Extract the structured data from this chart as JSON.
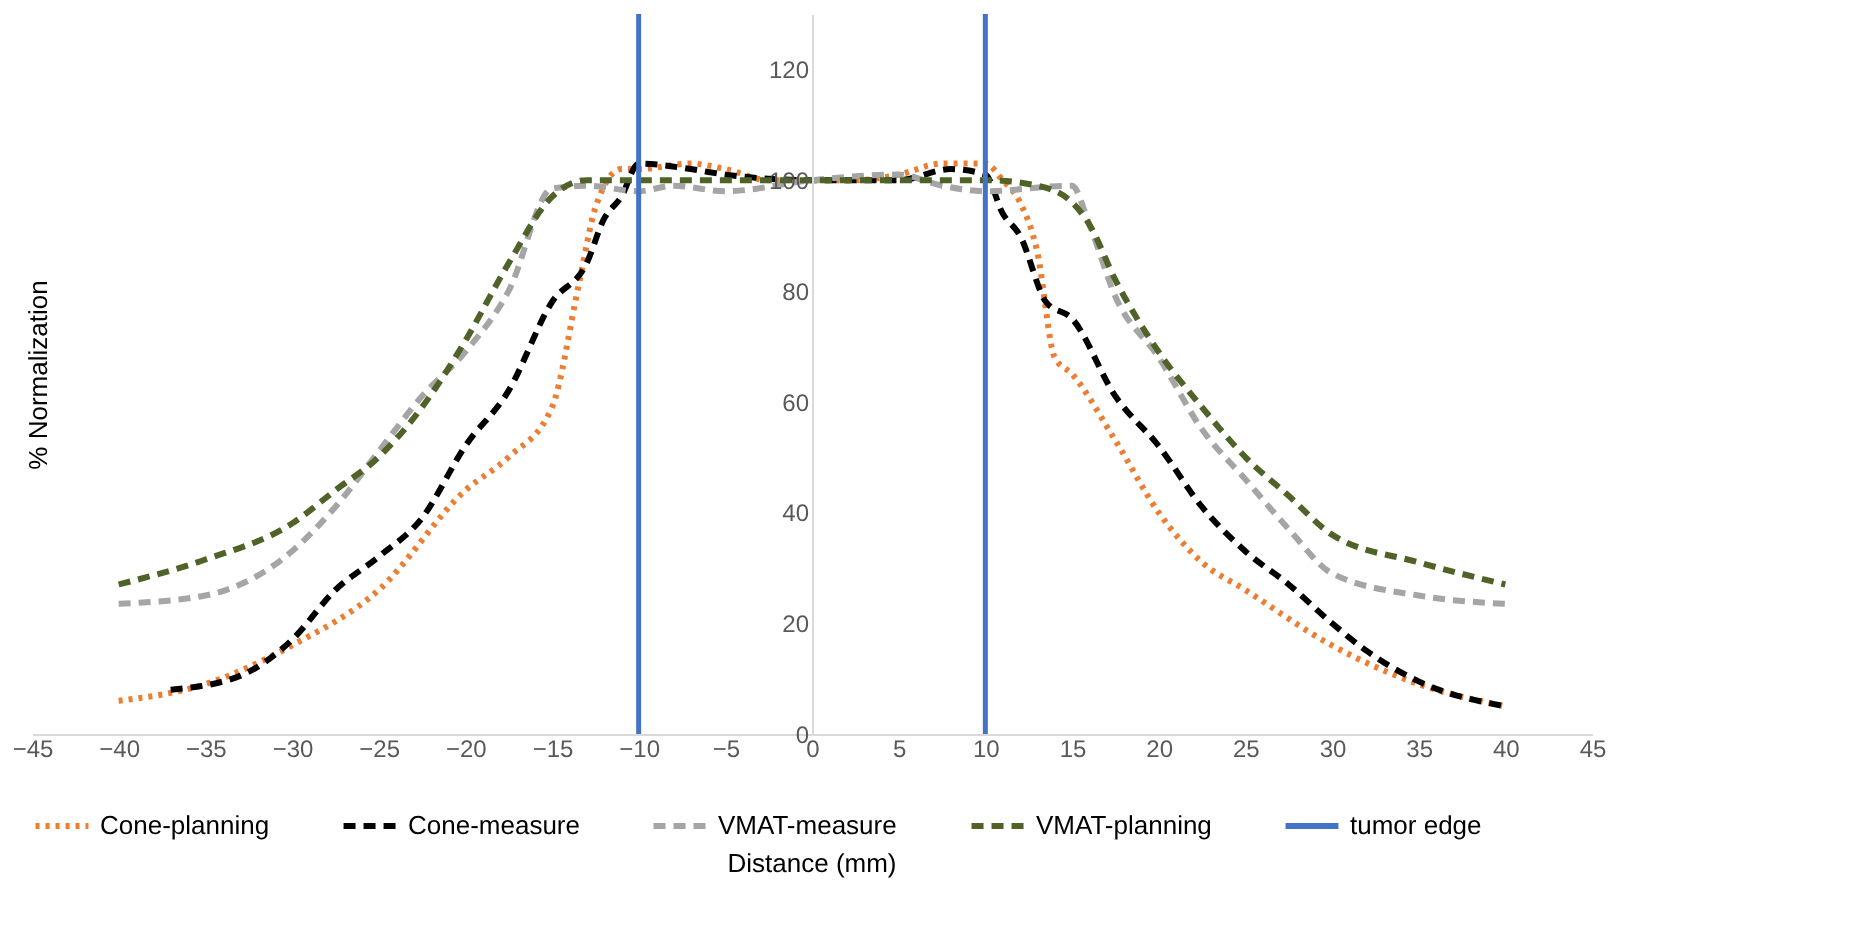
{
  "chart_data": {
    "type": "line",
    "xlabel": "Distance (mm)",
    "ylabel": "% Normalization",
    "xlim": [
      -45,
      45
    ],
    "xticks": [
      -45,
      -40,
      -35,
      -30,
      -25,
      -20,
      -15,
      -10,
      -5,
      0,
      5,
      10,
      15,
      20,
      25,
      30,
      35,
      40,
      45
    ],
    "ylim": [
      0,
      130
    ],
    "yticks": [
      0,
      20,
      40,
      60,
      80,
      100,
      120
    ],
    "grid": false,
    "legend": "bottom",
    "marker": "none",
    "series": [
      {
        "name": "Cone-planning",
        "color": "#ed7d31",
        "line_style": "dotted",
        "x": [
          -40,
          -35,
          -30,
          -25,
          -20,
          -17.5,
          -15,
          -13.4,
          -12.5,
          -11,
          -10,
          -7,
          -5,
          -2.5,
          0,
          2.5,
          5,
          7.5,
          10,
          11,
          12,
          13,
          14,
          15,
          17.5,
          20,
          22.5,
          25,
          30,
          35,
          40
        ],
        "values": [
          6,
          9,
          16,
          26,
          44,
          50,
          59,
          82,
          95,
          102,
          102,
          103,
          102,
          100,
          100,
          100,
          101,
          103,
          103,
          100,
          96,
          87,
          68,
          65,
          53,
          40,
          31,
          26,
          16,
          9,
          5
        ]
      },
      {
        "name": "Cone-measure",
        "color": "#000000",
        "line_style": "dashed",
        "x": [
          -37,
          -33,
          -30,
          -27.5,
          -25,
          -22.5,
          -20,
          -17.5,
          -15,
          -13,
          -12,
          -11,
          -10,
          -7,
          -5,
          0,
          5,
          8,
          10,
          11,
          12,
          13.5,
          15,
          17.5,
          20,
          22.5,
          25,
          27.5,
          30,
          32,
          35,
          40
        ],
        "values": [
          8,
          10.5,
          17,
          26,
          32,
          39,
          52,
          62,
          78,
          85,
          93,
          97,
          103,
          102,
          101,
          100,
          100,
          102,
          101,
          94,
          90,
          78,
          75,
          61,
          52,
          41,
          33,
          27,
          20,
          15,
          9.5,
          5
        ]
      },
      {
        "name": "VMAT-measure",
        "color": "#a5a5a5",
        "line_style": "dashed",
        "x": [
          -40,
          -35,
          -30,
          -27.5,
          -25,
          -22.5,
          -20,
          -17.5,
          -15,
          -13,
          -10,
          -8,
          -5,
          0,
          5,
          7.5,
          10,
          15,
          16,
          17.5,
          20,
          22.5,
          25,
          27.5,
          30,
          35,
          40
        ],
        "values": [
          23.5,
          25,
          33,
          41,
          51,
          61,
          69,
          80,
          98.5,
          99,
          98,
          99,
          98,
          100,
          101,
          99,
          98,
          99,
          92,
          79,
          68,
          55,
          46,
          37,
          29,
          25,
          23.5
        ]
      },
      {
        "name": "VMAT-planning",
        "color": "#4f6228",
        "line_style": "dashed",
        "x": [
          -40,
          -35,
          -30,
          -27.5,
          -25,
          -22.5,
          -20,
          -17.5,
          -15,
          -13,
          -10,
          0,
          10,
          13,
          15,
          16,
          17.5,
          20,
          22.5,
          25,
          27.5,
          30,
          35,
          40
        ],
        "values": [
          27,
          31.5,
          38,
          44,
          50,
          59,
          71,
          85,
          97,
          100,
          100,
          100,
          100,
          99,
          96,
          92,
          82,
          69,
          59,
          50,
          43,
          36,
          31,
          27
        ]
      }
    ],
    "ref_lines": [
      {
        "axis": "x",
        "value": -10,
        "label": "tumor edge",
        "color": "#4472c4",
        "line_style": "solid"
      },
      {
        "axis": "x",
        "value": 10,
        "color": "#4472c4",
        "line_style": "solid"
      }
    ]
  }
}
